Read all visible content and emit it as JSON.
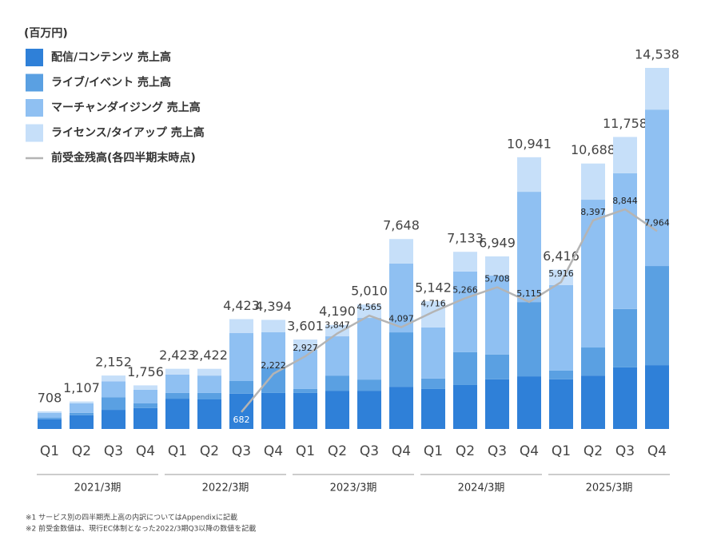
{
  "chart_data": {
    "type": "bar",
    "stacked": true,
    "unit_label": "(百万円)",
    "categories": [
      "Q1",
      "Q2",
      "Q3",
      "Q4",
      "Q1",
      "Q2",
      "Q3",
      "Q4",
      "Q1",
      "Q2",
      "Q3",
      "Q4",
      "Q1",
      "Q2",
      "Q3",
      "Q4",
      "Q1",
      "Q2",
      "Q3",
      "Q4"
    ],
    "groups": [
      "2021/3期",
      "2022/3期",
      "2023/3期",
      "2024/3期",
      "2025/3期"
    ],
    "series": [
      {
        "name": "配信/コンテンツ 売上高",
        "color": "#2f80d8",
        "values": [
          390,
          550,
          770,
          840,
          1220,
          1190,
          1420,
          1450,
          1450,
          1540,
          1540,
          1700,
          1610,
          1770,
          2000,
          2120,
          2000,
          2150,
          2480,
          2570
        ]
      },
      {
        "name": "ライブ/イベント 売上高",
        "color": "#5aa0e2",
        "values": [
          60,
          100,
          510,
          190,
          230,
          260,
          510,
          1000,
          160,
          610,
          450,
          2190,
          420,
          1320,
          1000,
          2990,
          350,
          1130,
          2350,
          3990
        ]
      },
      {
        "name": "マーチャンダイジング 売上高",
        "color": "#8fc0f2",
        "values": [
          200,
          380,
          640,
          550,
          740,
          700,
          1930,
          1450,
          1580,
          1580,
          2480,
          2770,
          2060,
          3250,
          3180,
          4440,
          3440,
          5950,
          5470,
          6300
        ]
      },
      {
        "name": "ライセンス/タイアップ 売上高",
        "color": "#c6dff9",
        "values": [
          58,
          77,
          232,
          176,
          233,
          272,
          563,
          494,
          411,
          460,
          540,
          988,
          1052,
          793,
          769,
          1391,
          626,
          1458,
          1458,
          1678
        ]
      },
      {
        "name": "前受金残高(各四半期末時点)",
        "type": "line",
        "color": "#b4b4b4",
        "values": [
          null,
          null,
          null,
          null,
          null,
          null,
          682,
          2222,
          2927,
          3847,
          4565,
          4097,
          4716,
          5266,
          5708,
          5115,
          5916,
          8397,
          8844,
          7964
        ],
        "value_labels": [
          null,
          null,
          null,
          null,
          null,
          null,
          "682",
          "2,222",
          "2,927",
          "3,847",
          "4,565",
          "4,097",
          "4,716",
          "5,266",
          "5,708",
          "5,115",
          "5,916",
          "8,397",
          "8,844",
          "7,964"
        ]
      }
    ],
    "totals": [
      708,
      1107,
      2152,
      1756,
      2423,
      2422,
      4423,
      4394,
      3601,
      4190,
      5010,
      7648,
      5142,
      7133,
      6949,
      10941,
      6416,
      10688,
      11758,
      14538
    ],
    "total_labels": [
      "708",
      "1,107",
      "2,152",
      "1,756",
      "2,423",
      "2,422",
      "4,423",
      "4,394",
      "3,601",
      "4,190",
      "5,010",
      "7,648",
      "5,142",
      "7,133",
      "6,949",
      "10,941",
      "6,416",
      "10,688",
      "11,758",
      "14,538"
    ],
    "notes": [
      "※1 サービス別の四半期売上高の内訳についてはAppendixに記載",
      "※2 前受金数値は、現行EC体制となった2022/3期Q3以降の数値を記載"
    ]
  }
}
